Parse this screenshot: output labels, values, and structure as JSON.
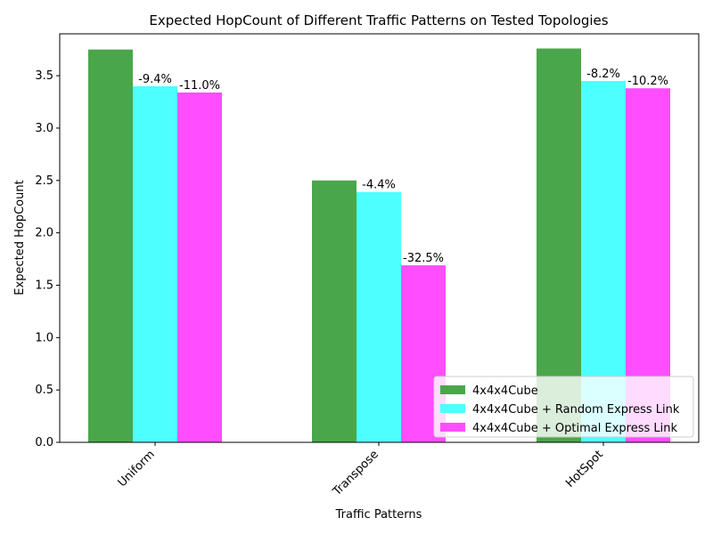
{
  "chart_data": {
    "type": "bar",
    "title": "Expected HopCount of Different Traffic Patterns on Tested Topologies",
    "xlabel": "Traffic Patterns",
    "ylabel": "Expected HopCount",
    "categories": [
      "Uniform",
      "Transpose",
      "HotSpot"
    ],
    "ylim": [
      0,
      3.9
    ],
    "yticks": [
      "0.0",
      "0.5",
      "1.0",
      "1.5",
      "2.0",
      "2.5",
      "3.0",
      "3.5"
    ],
    "grid": false,
    "legend_position": "lower-right",
    "series": [
      {
        "name": "4x4x4Cube",
        "color": "#4aa64a",
        "values": [
          3.75,
          2.5,
          3.76
        ],
        "labels": [
          "",
          "",
          ""
        ]
      },
      {
        "name": "4x4x4Cube + Random Express Link",
        "color": "#4dffff",
        "values": [
          3.4,
          2.39,
          3.45
        ],
        "labels": [
          "-9.4%",
          "-4.4%",
          "-8.2%"
        ]
      },
      {
        "name": "4x4x4Cube + Optimal Express Link",
        "color": "#ff4dff",
        "values": [
          3.34,
          1.69,
          3.38
        ],
        "labels": [
          "-11.0%",
          "-32.5%",
          "-10.2%"
        ]
      }
    ]
  }
}
